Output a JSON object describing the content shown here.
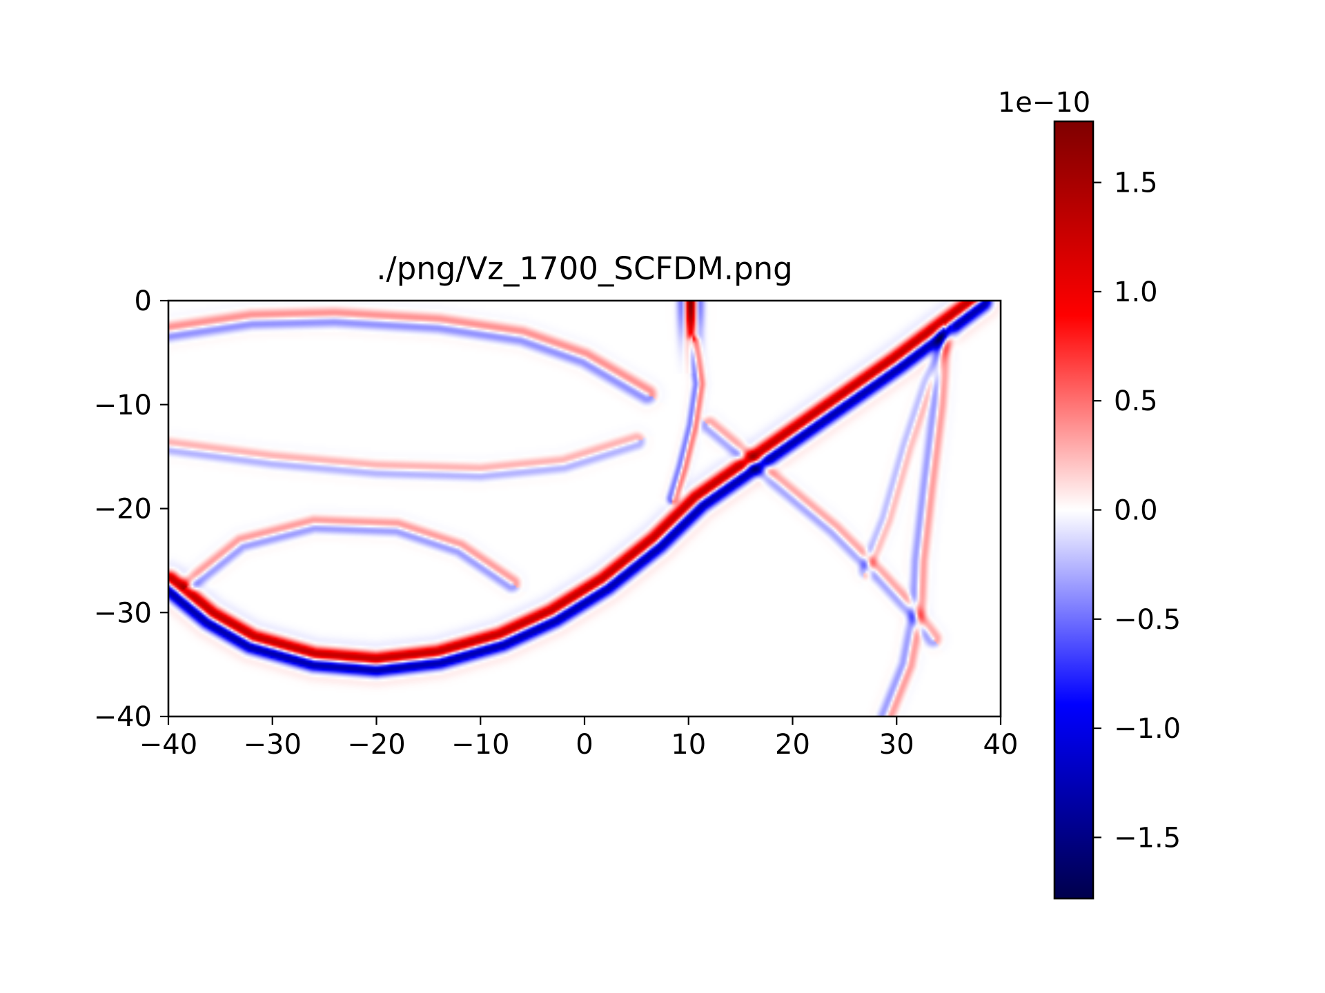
{
  "chart_data": {
    "type": "heatmap",
    "title": "./png/Vz_1700_SCFDM.png",
    "xlabel": "",
    "ylabel": "",
    "xlim": [
      -40,
      40
    ],
    "ylim": [
      -40,
      0
    ],
    "x_ticks": [
      -40,
      -30,
      -20,
      -10,
      0,
      10,
      20,
      30,
      40
    ],
    "x_tick_labels": [
      "−40",
      "−30",
      "−20",
      "−10",
      "0",
      "10",
      "20",
      "30",
      "40"
    ],
    "y_ticks": [
      0,
      -10,
      -20,
      -30,
      -40
    ],
    "y_tick_labels": [
      "0",
      "−10",
      "−20",
      "−30",
      "−40"
    ],
    "colormap": "seismic",
    "colorbar": {
      "range": [
        -1.78,
        1.78
      ],
      "ticks": [
        1.5,
        1.0,
        0.5,
        0.0,
        -0.5,
        -1.0,
        -1.5
      ],
      "tick_labels": [
        "1.5",
        "1.0",
        "0.5",
        "0.0",
        "−0.5",
        "−1.0",
        "−1.5"
      ],
      "offset_label": "1e−10",
      "colors": [
        "#00004c",
        "#0000ff",
        "#ffffff",
        "#ff0000",
        "#7f0000"
      ]
    },
    "wavefronts": [
      {
        "name": "strong-reflected-front",
        "amplitude": 1.7,
        "width": 1.1,
        "points": [
          [
            -40,
            -27.2
          ],
          [
            -36,
            -30.5
          ],
          [
            -32,
            -32.8
          ],
          [
            -26,
            -34.5
          ],
          [
            -20,
            -35
          ],
          [
            -14,
            -34.3
          ],
          [
            -8,
            -32.6
          ],
          [
            -3,
            -30.3
          ],
          [
            2,
            -27.2
          ],
          [
            7,
            -23.2
          ],
          [
            11,
            -19.3
          ],
          [
            20,
            -13
          ],
          [
            30,
            -6
          ],
          [
            38,
            0
          ]
        ]
      },
      {
        "name": "upper-arc",
        "amplitude": 0.5,
        "width": 0.9,
        "points": [
          [
            -40,
            -3
          ],
          [
            -32,
            -1.8
          ],
          [
            -24,
            -1.6
          ],
          [
            -14,
            -2.2
          ],
          [
            -6,
            -3.4
          ],
          [
            0,
            -5.5
          ],
          [
            6,
            -9
          ]
        ]
      },
      {
        "name": "middle-arc",
        "amplitude": 0.35,
        "width": 0.8,
        "points": [
          [
            -40,
            -14
          ],
          [
            -30,
            -15.3
          ],
          [
            -20,
            -16.2
          ],
          [
            -10,
            -16.5
          ],
          [
            -2,
            -15.7
          ],
          [
            5,
            -13.5
          ]
        ]
      },
      {
        "name": "lower-arc",
        "amplitude": 0.45,
        "width": 0.8,
        "points": [
          [
            -38,
            -27.3
          ],
          [
            -33,
            -23.3
          ],
          [
            -26,
            -21.5
          ],
          [
            -18,
            -21.8
          ],
          [
            -12,
            -23.8
          ],
          [
            -7,
            -27.2
          ]
        ]
      },
      {
        "name": "source-column",
        "amplitude": 0.6,
        "width": 0.6,
        "points": [
          [
            10.5,
            -4
          ],
          [
            11,
            -8
          ],
          [
            10.4,
            -12
          ],
          [
            9.4,
            -16
          ],
          [
            8.5,
            -19
          ]
        ]
      },
      {
        "name": "right-diagonal",
        "amplitude": 0.4,
        "width": 0.8,
        "points": [
          [
            12,
            -12
          ],
          [
            18,
            -17
          ],
          [
            24,
            -22
          ],
          [
            28,
            -26
          ],
          [
            31.5,
            -29.8
          ],
          [
            33.5,
            -32.5
          ]
        ]
      },
      {
        "name": "right-vertical",
        "amplitude": 0.45,
        "width": 0.8,
        "points": [
          [
            34.5,
            -3
          ],
          [
            34,
            -10
          ],
          [
            33,
            -18
          ],
          [
            32.2,
            -25
          ],
          [
            32,
            -29.8
          ],
          [
            31,
            -35
          ],
          [
            29,
            -40
          ]
        ]
      },
      {
        "name": "right-slanted",
        "amplitude": 0.3,
        "width": 0.7,
        "points": [
          [
            35,
            -3
          ],
          [
            33,
            -8
          ],
          [
            31,
            -14
          ],
          [
            29,
            -21
          ],
          [
            27,
            -26
          ]
        ]
      }
    ],
    "source": {
      "x": 10.2,
      "y": 0,
      "amplitude": 1.8
    }
  }
}
